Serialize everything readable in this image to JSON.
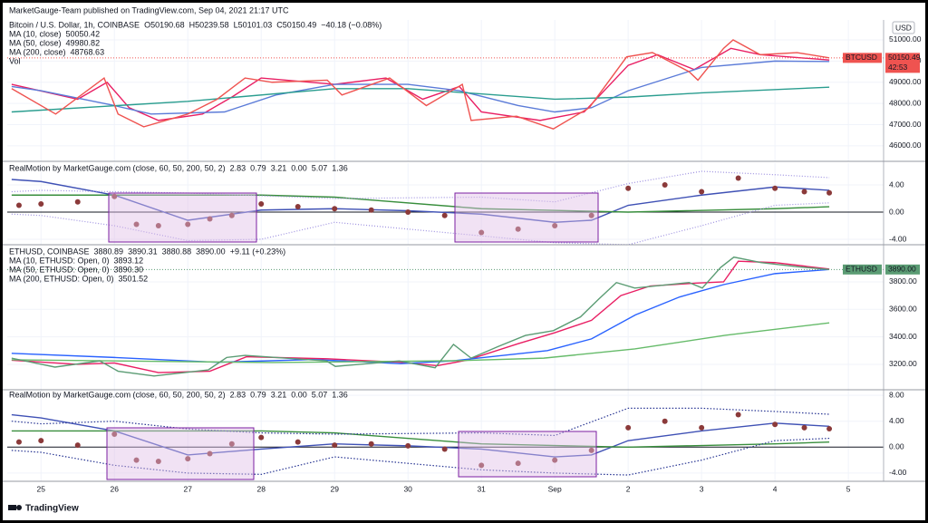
{
  "header": "MarketGauge-Team published on TradingView.com, Sep 04, 2021 21:17 UTC",
  "footer": "TradingView",
  "chart_data": [
    {
      "type": "line",
      "title": "Bitcoin / U.S. Dollar, 1h, COINBASE",
      "currency": "USD",
      "ohlc": [
        "O50190.68",
        "H50239.58",
        "L50101.03",
        "C50150.49",
        "−40.18 (−0.08%)"
      ],
      "ohlc_color": "#ef5350",
      "price": {
        "name": "BTCUSD",
        "color": "#ef5350",
        "countdown": "42:53",
        "x": [
          -0.4,
          0.2,
          0.86,
          1.05,
          1.4,
          2.0,
          2.4,
          2.78,
          3.15,
          3.9,
          4.1,
          4.75,
          5.25,
          5.74,
          5.86,
          6.48,
          6.98,
          7.47,
          7.98,
          8.33,
          8.83,
          8.95,
          9.3,
          9.43,
          9.8,
          10.3,
          10.74
        ],
        "values": [
          48700,
          47500,
          49200,
          47500,
          46900,
          47500,
          48200,
          49200,
          49000,
          49100,
          48400,
          49200,
          47900,
          48900,
          47200,
          47400,
          46800,
          47800,
          50200,
          50400,
          49500,
          49100,
          50600,
          51000,
          50300,
          50400,
          50150.49
        ]
      },
      "series": [
        {
          "name": "MA (10, close)",
          "color": "#e91e63",
          "legend_value": "50050.42",
          "x": [
            -0.4,
            0.5,
            0.9,
            1.2,
            1.6,
            2.2,
            2.6,
            3.0,
            4.0,
            4.7,
            5.2,
            5.7,
            6.0,
            6.8,
            7.4,
            8.0,
            8.4,
            8.9,
            9.4,
            9.8,
            10.74
          ],
          "values": [
            48900,
            48200,
            49000,
            47800,
            47200,
            47500,
            48300,
            49200,
            48900,
            49200,
            48200,
            48800,
            47600,
            47200,
            47600,
            49800,
            50300,
            49600,
            50600,
            50300,
            50050
          ]
        },
        {
          "name": "MA (50, close)",
          "color": "#5b7bd8",
          "legend_value": "49980.82",
          "x": [
            -0.4,
            0,
            1,
            1.5,
            2.5,
            3.2,
            4,
            5,
            5.7,
            6.5,
            7,
            7.5,
            8,
            9,
            10,
            10.74
          ],
          "values": [
            48800,
            48600,
            47900,
            47500,
            47600,
            48400,
            48900,
            48900,
            48600,
            47900,
            47600,
            47800,
            48600,
            49700,
            50000,
            49980
          ]
        },
        {
          "name": "MA (200, close)",
          "color": "#2a9d8f",
          "legend_value": "48768.63",
          "x": [
            -0.4,
            2,
            4,
            5,
            7,
            8,
            9,
            10.74
          ],
          "values": [
            47600,
            48100,
            48700,
            48700,
            48200,
            48300,
            48500,
            48770
          ]
        }
      ],
      "extra": [
        "Vol"
      ],
      "ylim": [
        45270,
        51940
      ],
      "yticks": [
        {
          "value": 46000,
          "label": "46000.00"
        },
        {
          "value": 47000,
          "label": "47000.00"
        },
        {
          "value": 48000,
          "label": "48000.00"
        },
        {
          "value": 49000,
          "label": "49000.00"
        },
        {
          "value": 50000,
          "label": "50000.00"
        },
        {
          "value": 51000,
          "label": "51000.00"
        }
      ]
    },
    {
      "type": "scatter",
      "title": "RealMotion by MarketGauge.com (close, 60, 50, 200, 50, 2)",
      "legend_values": [
        {
          "label": "2.83",
          "color": "#8b3a3a"
        },
        {
          "label": "0.79",
          "color": "#2e7d32"
        },
        {
          "label": "3.21",
          "color": "#3949ab"
        },
        {
          "label": "0.00",
          "color": "#131722"
        },
        {
          "label": "5.07",
          "color": "#3949ab"
        },
        {
          "label": "1.36",
          "color": "#3949ab"
        }
      ],
      "dots": {
        "color": "#8b3a3a",
        "x": [
          -0.3,
          0,
          0.5,
          1,
          1.3,
          1.6,
          2,
          2.3,
          2.6,
          3,
          3.5,
          4,
          4.5,
          5,
          5.5,
          6,
          6.5,
          7,
          7.5,
          8,
          8.5,
          9,
          9.5,
          10,
          10.4,
          10.74
        ],
        "values": [
          1.0,
          1.2,
          1.5,
          2.3,
          -1.8,
          -2.0,
          -1.8,
          -1.0,
          -0.5,
          1.2,
          0.8,
          0.5,
          0.3,
          0.0,
          -0.5,
          -3.0,
          -2.5,
          -2.0,
          -0.5,
          3.5,
          4.0,
          3.0,
          5.0,
          3.5,
          3.0,
          2.83
        ]
      },
      "series": [
        {
          "color": "#3f51b5",
          "dash": "",
          "x": [
            -0.4,
            0,
            1,
            2,
            3,
            4,
            5,
            6,
            7,
            7.5,
            8,
            9,
            10,
            10.74
          ],
          "values": [
            4.8,
            4.5,
            2.5,
            -1.2,
            0.3,
            0.5,
            0.2,
            -0.3,
            -1.5,
            -1.2,
            1.0,
            2.5,
            3.7,
            3.21
          ]
        },
        {
          "color": "#388e3c",
          "dash": "",
          "x": [
            -0.4,
            3,
            4,
            6,
            8,
            10,
            10.74
          ],
          "values": [
            2.5,
            2.5,
            2.2,
            0.5,
            0.0,
            0.5,
            0.79
          ]
        },
        {
          "color": "#9c8fe0",
          "dash": "1 2",
          "x": [
            -0.4,
            0,
            2,
            4,
            6,
            7,
            8,
            9,
            10,
            10.74
          ],
          "values": [
            3.0,
            3.2,
            2.8,
            2.0,
            2.2,
            1.5,
            4.2,
            6.0,
            5.5,
            5.07
          ]
        },
        {
          "color": "#9c8fe0",
          "dash": "1 2",
          "x": [
            -0.4,
            0,
            1,
            2,
            3,
            4,
            6,
            7,
            8,
            9,
            10,
            10.74
          ],
          "values": [
            -0.3,
            -0.5,
            -2.0,
            -4.2,
            -4.0,
            -1.5,
            -3.5,
            -4.5,
            -4.8,
            -2.0,
            1.0,
            1.36
          ]
        }
      ],
      "ylim": [
        -4.8,
        7.2
      ],
      "yticks": [
        {
          "value": -4,
          "label": "-4.00"
        },
        {
          "value": 0,
          "label": "0.00"
        },
        {
          "value": 4,
          "label": "4.00"
        }
      ]
    },
    {
      "type": "line",
      "title": "ETHUSD, COINBASE",
      "ohlc": [
        "3880.89",
        "3890.31",
        "3880.88",
        "3890.00",
        "+9.11 (+0.23%)"
      ],
      "ohlc_color": "#26a69a",
      "price": {
        "name": "ETHUSD",
        "color": "#5b9c74",
        "last_label": "3890.00",
        "x": [
          -0.4,
          0.19,
          0.8,
          1.05,
          1.54,
          2.28,
          2.53,
          2.78,
          3.89,
          4.01,
          4.88,
          5.37,
          5.62,
          5.86,
          6.23,
          6.6,
          6.98,
          7.35,
          7.6,
          7.84,
          8.09,
          8.83,
          9.01,
          9.26,
          9.44,
          9.81,
          10.31,
          10.74
        ],
        "values": [
          3245,
          3180,
          3225,
          3150,
          3115,
          3160,
          3250,
          3265,
          3225,
          3185,
          3225,
          3175,
          3345,
          3245,
          3330,
          3410,
          3445,
          3545,
          3675,
          3795,
          3755,
          3795,
          3755,
          3905,
          3980,
          3940,
          3910,
          3890
        ]
      },
      "series": [
        {
          "name": "MA (10, ETHUSD: Open, 0)",
          "color": "#e91e63",
          "legend_value": "3893.12",
          "x": [
            -0.4,
            0.5,
            1,
            1.6,
            2.3,
            2.8,
            3.9,
            4.9,
            5.4,
            5.8,
            6.5,
            7,
            7.5,
            7.9,
            8.3,
            8.9,
            9.3,
            9.5,
            10,
            10.74
          ],
          "values": [
            3230,
            3200,
            3210,
            3140,
            3150,
            3255,
            3240,
            3215,
            3190,
            3230,
            3350,
            3430,
            3520,
            3700,
            3770,
            3790,
            3800,
            3950,
            3940,
            3893
          ]
        },
        {
          "name": "MA (50, ETHUSD: Open, 0)",
          "color": "#2962ff",
          "legend_value": "3890.30",
          "x": [
            -0.4,
            1,
            2.4,
            3.7,
            4.9,
            5.6,
            6.9,
            7.5,
            8.1,
            8.7,
            9.3,
            10,
            10.74
          ],
          "values": [
            3280,
            3250,
            3215,
            3235,
            3205,
            3225,
            3300,
            3385,
            3560,
            3690,
            3780,
            3860,
            3890
          ]
        },
        {
          "name": "MA (200, ETHUSD: Open, 0)",
          "color": "#66bb6a",
          "legend_value": "3501.52",
          "x": [
            -0.4,
            3.15,
            5.62,
            6.85,
            8.09,
            9.32,
            10.74
          ],
          "values": [
            3233,
            3213,
            3226,
            3245,
            3312,
            3411,
            3501.52
          ]
        }
      ],
      "ylim": [
        3015,
        4057
      ],
      "yticks": [
        {
          "value": 3200,
          "label": "3200.00"
        },
        {
          "value": 3400,
          "label": "3400.00"
        },
        {
          "value": 3600,
          "label": "3600.00"
        },
        {
          "value": 3800,
          "label": "3800.00"
        }
      ]
    },
    {
      "type": "scatter",
      "title": "RealMotion by MarketGauge.com (close, 60, 50, 200, 50, 2)",
      "legend_values": [
        {
          "label": "2.83",
          "color": "#8b3a3a"
        },
        {
          "label": "0.79",
          "color": "#2e7d32"
        },
        {
          "label": "3.21",
          "color": "#3949ab"
        },
        {
          "label": "0.00",
          "color": "#131722"
        },
        {
          "label": "5.07",
          "color": "#3949ab"
        },
        {
          "label": "1.36",
          "color": "#3949ab"
        }
      ],
      "dots": {
        "color": "#8b3a3a",
        "x": [
          -0.3,
          0,
          0.5,
          1,
          1.3,
          1.6,
          2,
          2.3,
          2.6,
          3,
          3.5,
          4,
          4.5,
          5,
          5.5,
          6,
          6.5,
          7,
          7.5,
          8,
          8.5,
          9,
          9.5,
          10,
          10.4,
          10.74
        ],
        "values": [
          0.8,
          1.0,
          0.3,
          2.0,
          -2.0,
          -2.2,
          -1.8,
          -1.0,
          0.5,
          1.5,
          0.8,
          0.3,
          0.5,
          0.2,
          -0.3,
          -2.8,
          -2.5,
          -2.0,
          -0.5,
          3.0,
          4.0,
          3.0,
          5.0,
          3.5,
          3.0,
          2.83
        ]
      },
      "series": [
        {
          "color": "#3f51b5",
          "dash": "",
          "x": [
            -0.4,
            0,
            1,
            2,
            3,
            4,
            5,
            6,
            7,
            7.5,
            8,
            9,
            10,
            10.74
          ],
          "values": [
            5.0,
            4.5,
            2.5,
            -1.2,
            -0.3,
            0.5,
            0.2,
            -0.3,
            -1.5,
            -1.2,
            1.0,
            2.5,
            3.7,
            3.21
          ]
        },
        {
          "color": "#388e3c",
          "dash": "",
          "x": [
            -0.4,
            3,
            4,
            6,
            8,
            10,
            10.74
          ],
          "values": [
            2.5,
            2.5,
            2.2,
            0.5,
            0.0,
            0.5,
            0.79
          ]
        },
        {
          "color": "#283593",
          "dash": "1.5 2",
          "x": [
            -0.4,
            0,
            1,
            2,
            3,
            4,
            6,
            7,
            8,
            9,
            10,
            10.74
          ],
          "values": [
            4.0,
            3.6,
            4.0,
            2.8,
            2.2,
            2.0,
            2.2,
            1.8,
            6.0,
            6.0,
            5.5,
            5.07
          ]
        },
        {
          "color": "#283593",
          "dash": "1.5 2",
          "x": [
            -0.4,
            0,
            1,
            2,
            3,
            4,
            6,
            7,
            8,
            9,
            10,
            10.74
          ],
          "values": [
            -0.5,
            -0.8,
            -2.8,
            -4.0,
            -4.2,
            -1.5,
            -3.5,
            -4.0,
            -4.3,
            -2.0,
            1.0,
            1.36
          ]
        }
      ],
      "ylim": [
        -5.27,
        8.85
      ],
      "yticks": [
        {
          "value": -4,
          "label": "-4.00"
        },
        {
          "value": 0,
          "label": "0.00"
        },
        {
          "value": 4,
          "label": "4.00"
        },
        {
          "value": 8,
          "label": "8.00"
        }
      ],
      "xlim": [
        -0.46,
        11.48
      ],
      "xticks": [
        {
          "value": 0,
          "label": "25"
        },
        {
          "value": 1,
          "label": "26"
        },
        {
          "value": 2,
          "label": "27"
        },
        {
          "value": 3,
          "label": "28"
        },
        {
          "value": 4,
          "label": "29"
        },
        {
          "value": 5,
          "label": "30"
        },
        {
          "value": 6,
          "label": "31"
        },
        {
          "value": 7,
          "label": "Sep"
        },
        {
          "value": 8,
          "label": "2"
        },
        {
          "value": 9,
          "label": "3"
        },
        {
          "value": 10,
          "label": "4"
        },
        {
          "value": 11,
          "label": "5"
        }
      ]
    }
  ]
}
